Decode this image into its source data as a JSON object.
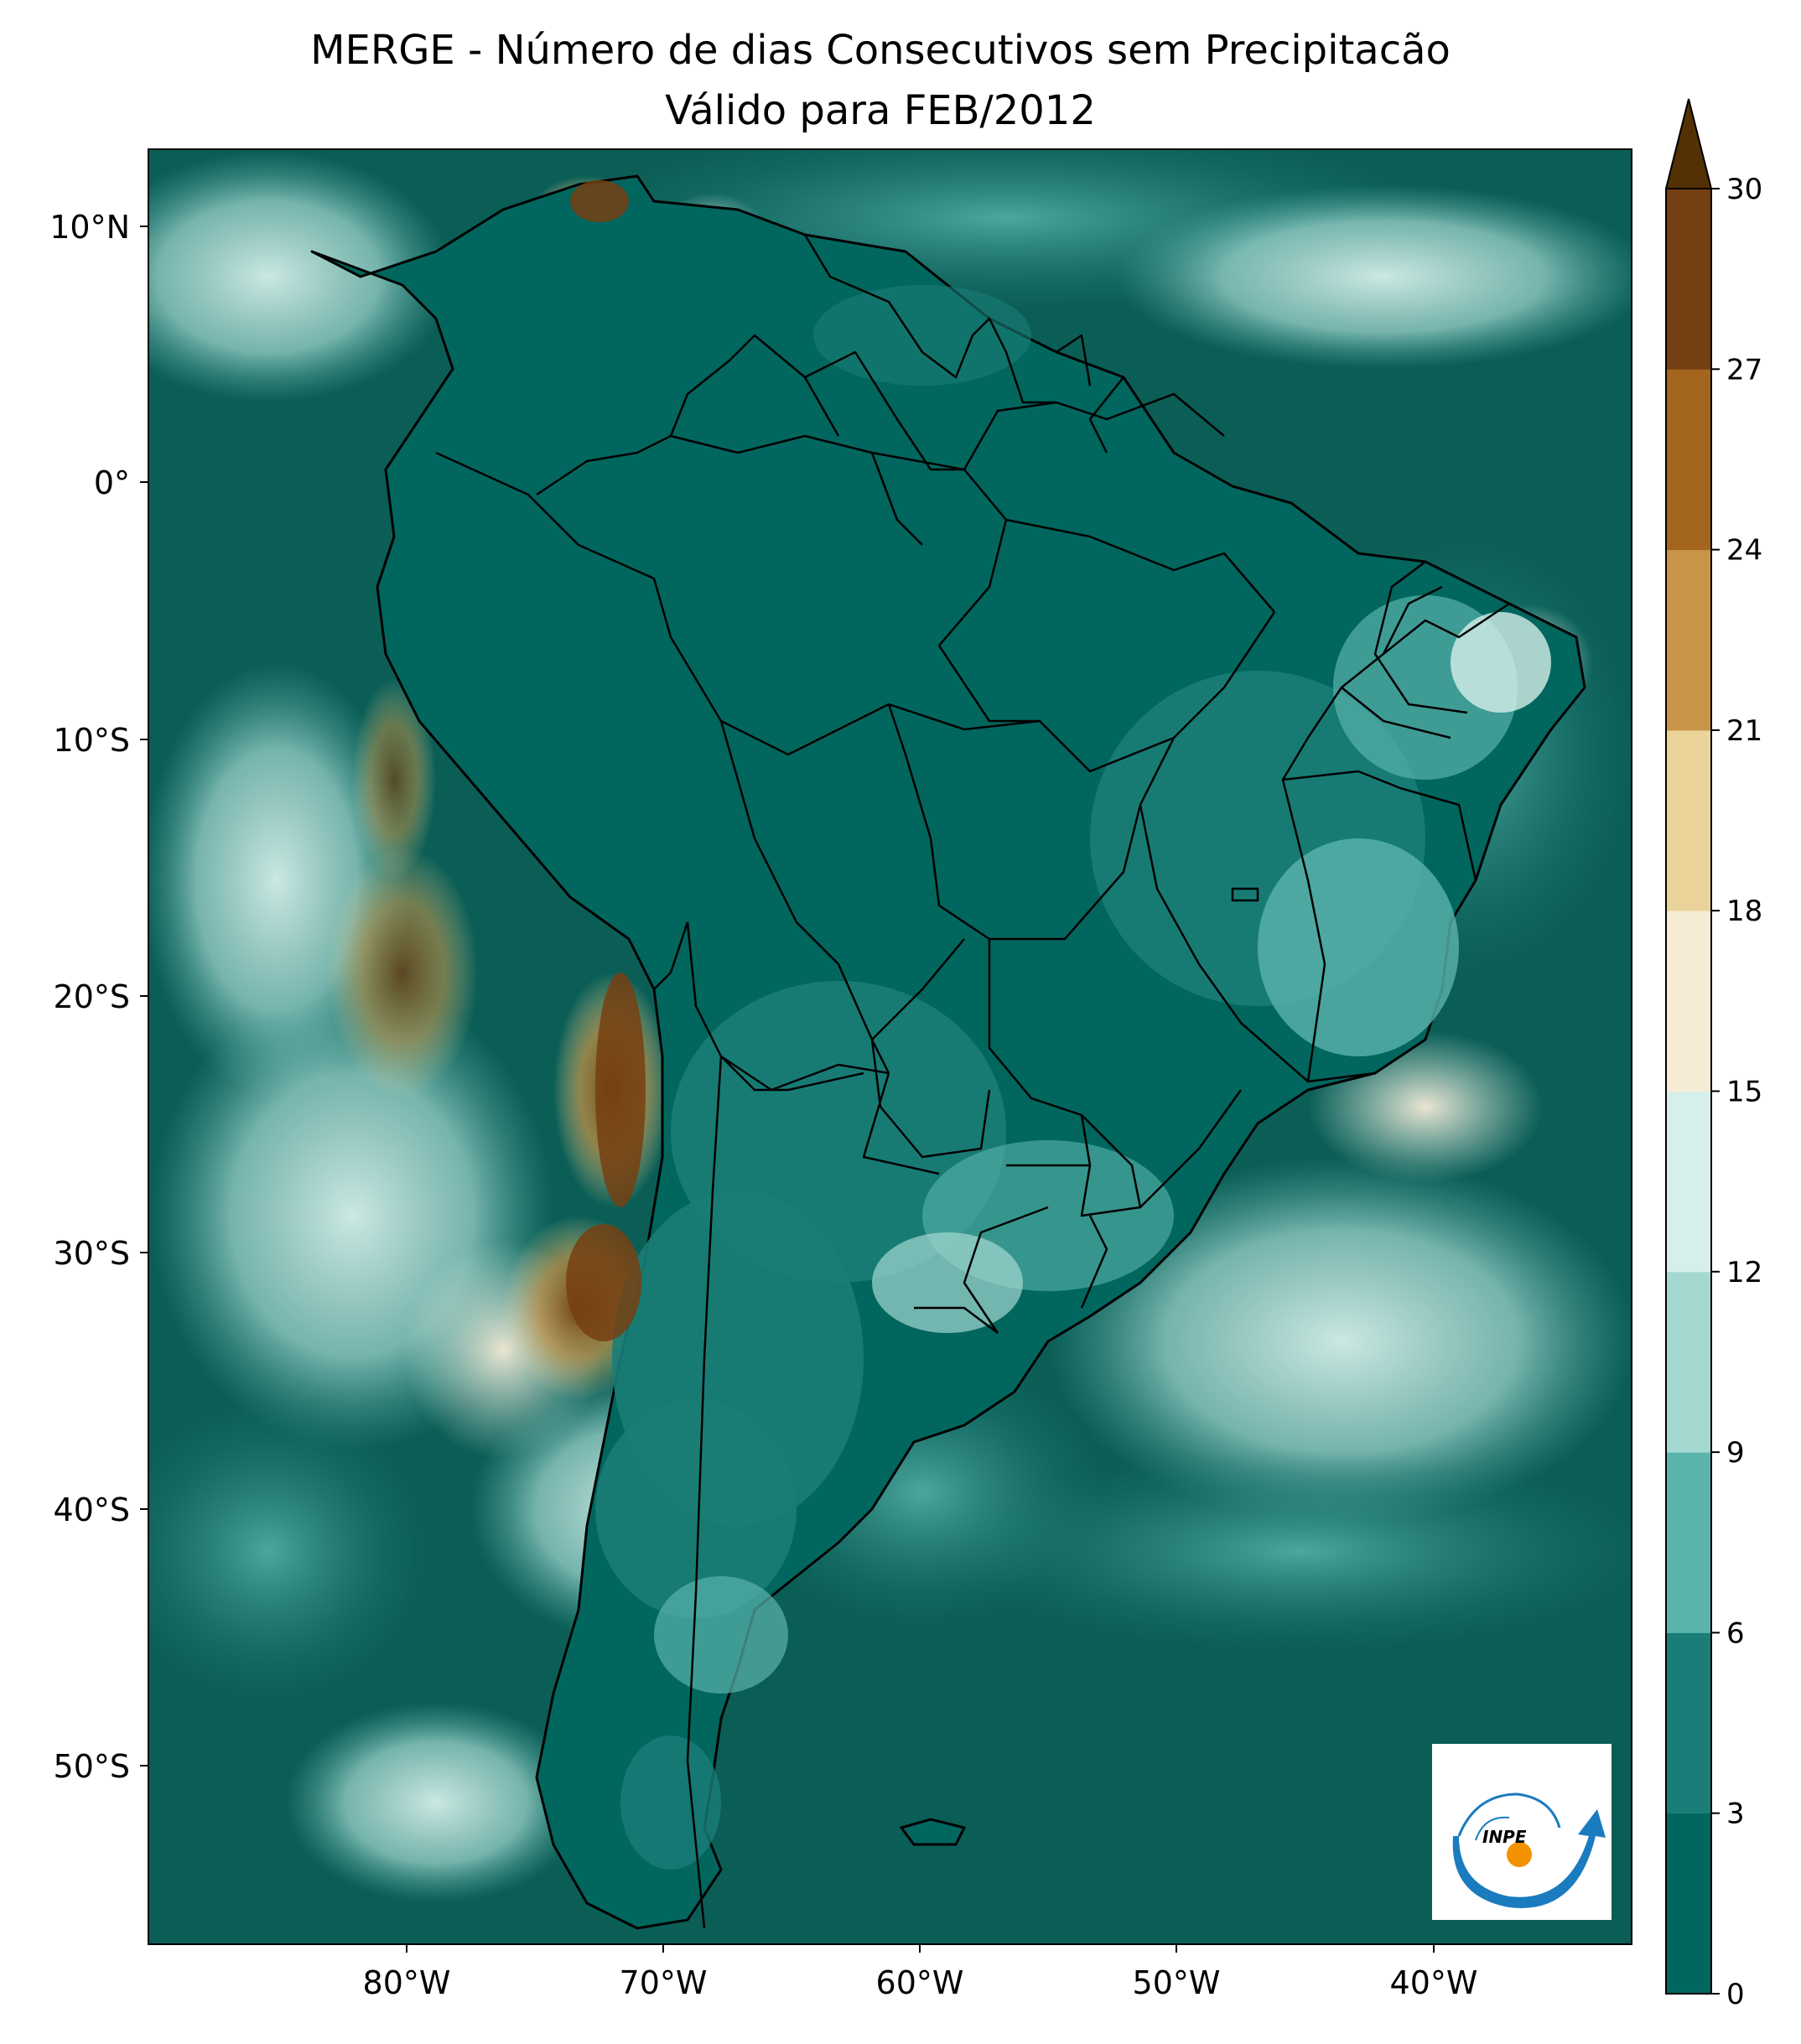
{
  "title": {
    "line1": "MERGE - Número de dias Consecutivos sem Precipitacão",
    "line2": "Válido para FEB/2012"
  },
  "axes": {
    "lat_ticks": [
      "10°N",
      "0°",
      "10°S",
      "20°S",
      "30°S",
      "40°S",
      "50°S"
    ],
    "lon_ticks": [
      "80°W",
      "70°W",
      "60°W",
      "50°W",
      "40°W"
    ]
  },
  "colorbar": {
    "ticks": [
      "0",
      "3",
      "6",
      "9",
      "12",
      "15",
      "18",
      "21",
      "24",
      "27",
      "30"
    ],
    "extend": "max",
    "colors": [
      "#01665e",
      "#1a7d77",
      "#5ab4ac",
      "#a4d9d1",
      "#d6efea",
      "#f6ecd6",
      "#ebd49a",
      "#c89548",
      "#a4651f",
      "#754012"
    ],
    "extend_color": "#543005"
  },
  "map_colors": {
    "ocean": "#0b5e56",
    "land_border": "#000000"
  },
  "logo": {
    "text": "INPE",
    "icon": "inpe-logo-icon"
  }
}
